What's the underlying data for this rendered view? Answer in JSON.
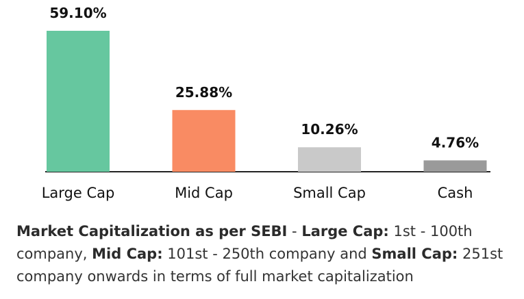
{
  "chart_data": {
    "type": "bar",
    "categories": [
      "Large Cap",
      "Mid Cap",
      "Small Cap",
      "Cash"
    ],
    "values": [
      59.1,
      25.88,
      10.26,
      4.76
    ],
    "value_labels": [
      "59.10%",
      "25.88%",
      "10.26%",
      "4.76%"
    ],
    "colors": [
      "#66c79f",
      "#f98b63",
      "#c9c9c9",
      "#9a9a9a"
    ],
    "axis_color": "#222222",
    "title": "",
    "xlabel": "",
    "ylabel": "",
    "ylim": [
      0,
      60
    ],
    "grid": false,
    "legend": "none"
  },
  "footnote": {
    "term1": "Market Capitalization as per SEBI",
    "sep1": " - ",
    "term2": "Large Cap:",
    "text2": " 1st - 100th company, ",
    "term3": "Mid Cap:",
    "text3": " 101st - 250th company and ",
    "term4": "Small Cap:",
    "text4": " 251st company onwards in terms of full market capitalization"
  }
}
